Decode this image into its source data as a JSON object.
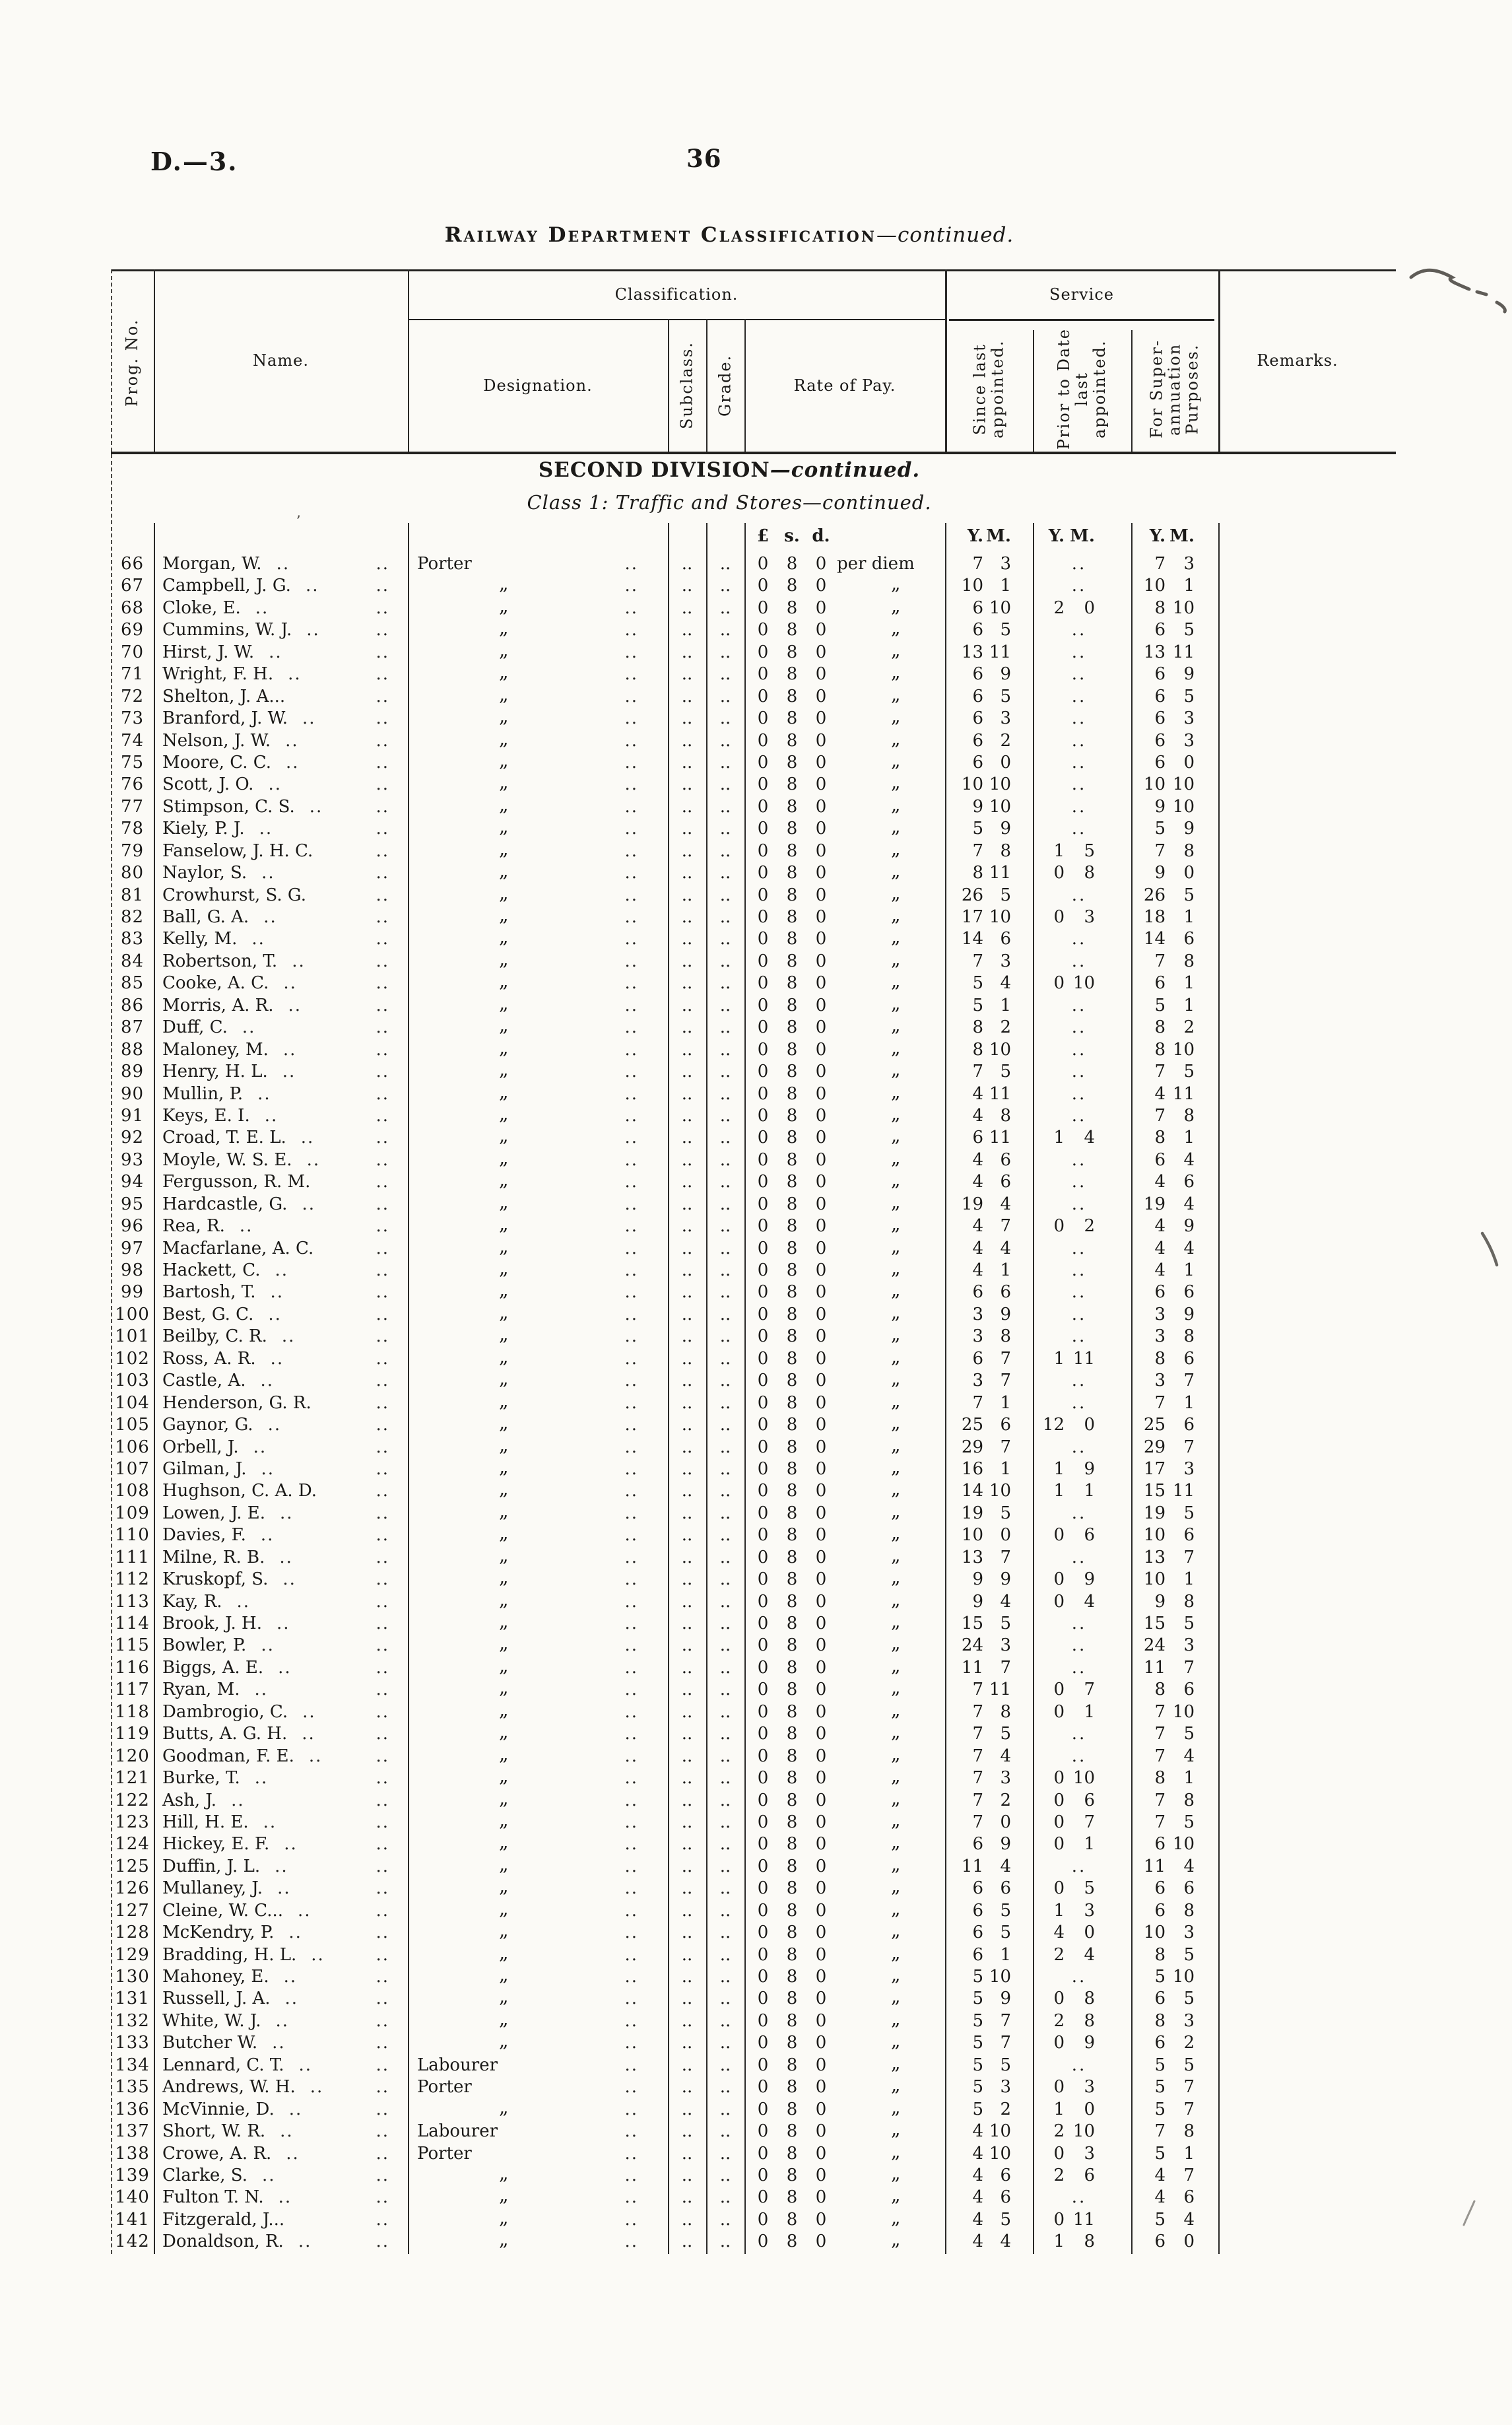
{
  "page": {
    "doc_ref": "D.—3.",
    "page_number": "36",
    "title": "Railway Department Classification",
    "title_cont": "—continued."
  },
  "table": {
    "headers": {
      "prog_no": "Prog. No.",
      "name": "Name.",
      "classification": "Classification.",
      "designation": "Designation.",
      "subclass": "Subclass.",
      "grade": "Grade.",
      "rate_of_pay": "Rate of Pay.",
      "service": "Service",
      "since_last": "Since last\nappointed.",
      "prior_to": "Prior to Date\nlast\nappointed.",
      "superannuation": "For Super-\nannuation\nPurposes.",
      "remarks": "Remarks."
    },
    "section": {
      "division": "SECOND DIVISION",
      "division_cont": "—continued.",
      "class_line": "Class 1: Traffic and Stores",
      "class_cont": "—continued."
    },
    "unit_headers": {
      "pound": "£",
      "shillings": "s.",
      "pence": "d.",
      "ym_y": "Y.",
      "ym_m": "M."
    },
    "leader_dots": "..",
    "ditto": "„",
    "rows": [
      {
        "no": "66",
        "name": "Morgan, W.",
        "desig": "Porter",
        "rate": "0 8 0",
        "per": "per diem",
        "since": "7 3",
        "prior": "..",
        "super": "7 3"
      },
      {
        "no": "67",
        "name": "Campbell, J. G.",
        "desig": "„",
        "rate": "0 8 0",
        "per": "„",
        "since": "10 1",
        "prior": "..",
        "super": "10 1"
      },
      {
        "no": "68",
        "name": "Cloke, E.",
        "desig": "„",
        "rate": "0 8 0",
        "per": "„",
        "since": "6 10",
        "prior": "2 0",
        "super": "8 10"
      },
      {
        "no": "69",
        "name": "Cummins, W. J.",
        "desig": "„",
        "rate": "0 8 0",
        "per": "„",
        "since": "6 5",
        "prior": "..",
        "super": "6 5"
      },
      {
        "no": "70",
        "name": "Hirst, J. W.",
        "desig": "„",
        "rate": "0 8 0",
        "per": "„",
        "since": "13 11",
        "prior": "..",
        "super": "13 11"
      },
      {
        "no": "71",
        "name": "Wright, F. H.",
        "desig": "„",
        "rate": "0 8 0",
        "per": "„",
        "since": "6 9",
        "prior": "..",
        "super": "6 9"
      },
      {
        "no": "72",
        "name": "Shelton, J. A...",
        "desig": "„",
        "rate": "0 8 0",
        "per": "„",
        "since": "6 5",
        "prior": "..",
        "super": "6 5"
      },
      {
        "no": "73",
        "name": "Branford, J. W.",
        "desig": "„",
        "rate": "0 8 0",
        "per": "„",
        "since": "6 3",
        "prior": "..",
        "super": "6 3"
      },
      {
        "no": "74",
        "name": "Nelson, J. W.",
        "desig": "„",
        "rate": "0 8 0",
        "per": "„",
        "since": "6 2",
        "prior": "..",
        "super": "6 3"
      },
      {
        "no": "75",
        "name": "Moore, C. C.",
        "desig": "„",
        "rate": "0 8 0",
        "per": "„",
        "since": "6 0",
        "prior": "..",
        "super": "6 0"
      },
      {
        "no": "76",
        "name": "Scott, J. O.",
        "desig": "„",
        "rate": "0 8 0",
        "per": "„",
        "since": "10 10",
        "prior": "..",
        "super": "10 10"
      },
      {
        "no": "77",
        "name": "Stimpson, C. S.",
        "desig": "„",
        "rate": "0 8 0",
        "per": "„",
        "since": "9 10",
        "prior": "..",
        "super": "9 10"
      },
      {
        "no": "78",
        "name": "Kiely, P. J.",
        "desig": "„",
        "rate": "0 8 0",
        "per": "„",
        "since": "5 9",
        "prior": "..",
        "super": "5 9"
      },
      {
        "no": "79",
        "name": "Fanselow, J. H. C.",
        "desig": "„",
        "rate": "0 8 0",
        "per": "„",
        "since": "7 8",
        "prior": "1 5",
        "super": "7 8"
      },
      {
        "no": "80",
        "name": "Naylor, S.",
        "desig": "„",
        "rate": "0 8 0",
        "per": "„",
        "since": "8 11",
        "prior": "0 8",
        "super": "9 0"
      },
      {
        "no": "81",
        "name": "Crowhurst, S. G.",
        "desig": "„",
        "rate": "0 8 0",
        "per": "„",
        "since": "26 5",
        "prior": "..",
        "super": "26 5"
      },
      {
        "no": "82",
        "name": "Ball, G. A.",
        "desig": "„",
        "rate": "0 8 0",
        "per": "„",
        "since": "17 10",
        "prior": "0 3",
        "super": "18 1"
      },
      {
        "no": "83",
        "name": "Kelly, M.",
        "desig": "„",
        "rate": "0 8 0",
        "per": "„",
        "since": "14 6",
        "prior": "..",
        "super": "14 6"
      },
      {
        "no": "84",
        "name": "Robertson, T.",
        "desig": "„",
        "rate": "0 8 0",
        "per": "„",
        "since": "7 3",
        "prior": "..",
        "super": "7 8"
      },
      {
        "no": "85",
        "name": "Cooke, A. C.",
        "desig": "„",
        "rate": "0 8 0",
        "per": "„",
        "since": "5 4",
        "prior": "0 10",
        "super": "6 1"
      },
      {
        "no": "86",
        "name": "Morris, A. R.",
        "desig": "„",
        "rate": "0 8 0",
        "per": "„",
        "since": "5 1",
        "prior": "..",
        "super": "5 1"
      },
      {
        "no": "87",
        "name": "Duff, C.",
        "desig": "„",
        "rate": "0 8 0",
        "per": "„",
        "since": "8 2",
        "prior": "..",
        "super": "8 2"
      },
      {
        "no": "88",
        "name": "Maloney, M.",
        "desig": "„",
        "rate": "0 8 0",
        "per": "„",
        "since": "8 10",
        "prior": "..",
        "super": "8 10"
      },
      {
        "no": "89",
        "name": "Henry, H. L.",
        "desig": "„",
        "rate": "0 8 0",
        "per": "„",
        "since": "7 5",
        "prior": "..",
        "super": "7 5"
      },
      {
        "no": "90",
        "name": "Mullin, P.",
        "desig": "„",
        "rate": "0 8 0",
        "per": "„",
        "since": "4 11",
        "prior": "..",
        "super": "4 11"
      },
      {
        "no": "91",
        "name": "Keys, E. I.",
        "desig": "„",
        "rate": "0 8 0",
        "per": "„",
        "since": "4 8",
        "prior": "..",
        "super": "7 8"
      },
      {
        "no": "92",
        "name": "Croad, T. E. L.",
        "desig": "„",
        "rate": "0 8 0",
        "per": "„",
        "since": "6 11",
        "prior": "1 4",
        "super": "8 1"
      },
      {
        "no": "93",
        "name": "Moyle, W. S. E.",
        "desig": "„",
        "rate": "0 8 0",
        "per": "„",
        "since": "4 6",
        "prior": "..",
        "super": "6 4"
      },
      {
        "no": "94",
        "name": "Fergusson, R. M.",
        "desig": "„",
        "rate": "0 8 0",
        "per": "„",
        "since": "4 6",
        "prior": "..",
        "super": "4 6"
      },
      {
        "no": "95",
        "name": "Hardcastle, G.",
        "desig": "„",
        "rate": "0 8 0",
        "per": "„",
        "since": "19 4",
        "prior": "..",
        "super": "19 4"
      },
      {
        "no": "96",
        "name": "Rea, R.",
        "desig": "„",
        "rate": "0 8 0",
        "per": "„",
        "since": "4 7",
        "prior": "0 2",
        "super": "4 9"
      },
      {
        "no": "97",
        "name": "Macfarlane, A. C.",
        "desig": "„",
        "rate": "0 8 0",
        "per": "„",
        "since": "4 4",
        "prior": "..",
        "super": "4 4"
      },
      {
        "no": "98",
        "name": "Hackett, C.",
        "desig": "„",
        "rate": "0 8 0",
        "per": "„",
        "since": "4 1",
        "prior": "..",
        "super": "4 1"
      },
      {
        "no": "99",
        "name": "Bartosh, T.",
        "desig": "„",
        "rate": "0 8 0",
        "per": "„",
        "since": "6 6",
        "prior": "..",
        "super": "6 6"
      },
      {
        "no": "100",
        "name": "Best, G. C.",
        "desig": "„",
        "rate": "0 8 0",
        "per": "„",
        "since": "3 9",
        "prior": "..",
        "super": "3 9"
      },
      {
        "no": "101",
        "name": "Beilby, C. R.",
        "desig": "„",
        "rate": "0 8 0",
        "per": "„",
        "since": "3 8",
        "prior": "..",
        "super": "3 8"
      },
      {
        "no": "102",
        "name": "Ross, A. R.",
        "desig": "„",
        "rate": "0 8 0",
        "per": "„",
        "since": "6 7",
        "prior": "1 11",
        "super": "8 6"
      },
      {
        "no": "103",
        "name": "Castle, A.",
        "desig": "„",
        "rate": "0 8 0",
        "per": "„",
        "since": "3 7",
        "prior": "..",
        "super": "3 7"
      },
      {
        "no": "104",
        "name": "Henderson, G. R.",
        "desig": "„",
        "rate": "0 8 0",
        "per": "„",
        "since": "7 1",
        "prior": "..",
        "super": "7 1"
      },
      {
        "no": "105",
        "name": "Gaynor, G.",
        "desig": "„",
        "rate": "0 8 0",
        "per": "„",
        "since": "25 6",
        "prior": "12 0",
        "super": "25 6"
      },
      {
        "no": "106",
        "name": "Orbell, J.",
        "desig": "„",
        "rate": "0 8 0",
        "per": "„",
        "since": "29 7",
        "prior": "..",
        "super": "29 7"
      },
      {
        "no": "107",
        "name": "Gilman, J.",
        "desig": "„",
        "rate": "0 8 0",
        "per": "„",
        "since": "16 1",
        "prior": "1 9",
        "super": "17 3"
      },
      {
        "no": "108",
        "name": "Hughson, C. A. D.",
        "desig": "„",
        "rate": "0 8 0",
        "per": "„",
        "since": "14 10",
        "prior": "1 1",
        "super": "15 11"
      },
      {
        "no": "109",
        "name": "Lowen, J. E.",
        "desig": "„",
        "rate": "0 8 0",
        "per": "„",
        "since": "19 5",
        "prior": "..",
        "super": "19 5"
      },
      {
        "no": "110",
        "name": "Davies, F.",
        "desig": "„",
        "rate": "0 8 0",
        "per": "„",
        "since": "10 0",
        "prior": "0 6",
        "super": "10 6"
      },
      {
        "no": "111",
        "name": "Milne, R. B.",
        "desig": "„",
        "rate": "0 8 0",
        "per": "„",
        "since": "13 7",
        "prior": "..",
        "super": "13 7"
      },
      {
        "no": "112",
        "name": "Kruskopf, S.",
        "desig": "„",
        "rate": "0 8 0",
        "per": "„",
        "since": "9 9",
        "prior": "0 9",
        "super": "10 1"
      },
      {
        "no": "113",
        "name": "Kay, R.",
        "desig": "„",
        "rate": "0 8 0",
        "per": "„",
        "since": "9 4",
        "prior": "0 4",
        "super": "9 8"
      },
      {
        "no": "114",
        "name": "Brook, J. H.",
        "desig": "„",
        "rate": "0 8 0",
        "per": "„",
        "since": "15 5",
        "prior": "..",
        "super": "15 5"
      },
      {
        "no": "115",
        "name": "Bowler, P.",
        "desig": "„",
        "rate": "0 8 0",
        "per": "„",
        "since": "24 3",
        "prior": "..",
        "super": "24 3"
      },
      {
        "no": "116",
        "name": "Biggs, A. E.",
        "desig": "„",
        "rate": "0 8 0",
        "per": "„",
        "since": "11 7",
        "prior": "..",
        "super": "11 7"
      },
      {
        "no": "117",
        "name": "Ryan, M.",
        "desig": "„",
        "rate": "0 8 0",
        "per": "„",
        "since": "7 11",
        "prior": "0 7",
        "super": "8 6"
      },
      {
        "no": "118",
        "name": "Dambrogio, C.",
        "desig": "„",
        "rate": "0 8 0",
        "per": "„",
        "since": "7 8",
        "prior": "0 1",
        "super": "7 10"
      },
      {
        "no": "119",
        "name": "Butts, A. G. H.",
        "desig": "„",
        "rate": "0 8 0",
        "per": "„",
        "since": "7 5",
        "prior": "..",
        "super": "7 5"
      },
      {
        "no": "120",
        "name": "Goodman, F. E.",
        "desig": "„",
        "rate": "0 8 0",
        "per": "„",
        "since": "7 4",
        "prior": "..",
        "super": "7 4"
      },
      {
        "no": "121",
        "name": "Burke, T.",
        "desig": "„",
        "rate": "0 8 0",
        "per": "„",
        "since": "7 3",
        "prior": "0 10",
        "super": "8 1"
      },
      {
        "no": "122",
        "name": "Ash, J.",
        "desig": "„",
        "rate": "0 8 0",
        "per": "„",
        "since": "7 2",
        "prior": "0 6",
        "super": "7 8"
      },
      {
        "no": "123",
        "name": "Hill, H. E.",
        "desig": "„",
        "rate": "0 8 0",
        "per": "„",
        "since": "7 0",
        "prior": "0 7",
        "super": "7 5"
      },
      {
        "no": "124",
        "name": "Hickey, E. F.",
        "desig": "„",
        "rate": "0 8 0",
        "per": "„",
        "since": "6 9",
        "prior": "0 1",
        "super": "6 10"
      },
      {
        "no": "125",
        "name": "Duffin, J. L.",
        "desig": "„",
        "rate": "0 8 0",
        "per": "„",
        "since": "11 4",
        "prior": "..",
        "super": "11 4"
      },
      {
        "no": "126",
        "name": "Mullaney, J.",
        "desig": "„",
        "rate": "0 8 0",
        "per": "„",
        "since": "6 6",
        "prior": "0 5",
        "super": "6 6"
      },
      {
        "no": "127",
        "name": "Cleine, W. C...",
        "desig": "„",
        "rate": "0 8 0",
        "per": "„",
        "since": "6 5",
        "prior": "1 3",
        "super": "6 8"
      },
      {
        "no": "128",
        "name": "McKendry, P.",
        "desig": "„",
        "rate": "0 8 0",
        "per": "„",
        "since": "6 5",
        "prior": "4 0",
        "super": "10 3"
      },
      {
        "no": "129",
        "name": "Bradding, H. L.",
        "desig": "„",
        "rate": "0 8 0",
        "per": "„",
        "since": "6 1",
        "prior": "2 4",
        "super": "8 5"
      },
      {
        "no": "130",
        "name": "Mahoney, E.",
        "desig": "„",
        "rate": "0 8 0",
        "per": "„",
        "since": "5 10",
        "prior": "..",
        "super": "5 10"
      },
      {
        "no": "131",
        "name": "Russell, J. A.",
        "desig": "„",
        "rate": "0 8 0",
        "per": "„",
        "since": "5 9",
        "prior": "0 8",
        "super": "6 5"
      },
      {
        "no": "132",
        "name": "White, W. J.",
        "desig": "„",
        "rate": "0 8 0",
        "per": "„",
        "since": "5 7",
        "prior": "2 8",
        "super": "8 3"
      },
      {
        "no": "133",
        "name": "Butcher W.",
        "desig": "„",
        "rate": "0 8 0",
        "per": "„",
        "since": "5 7",
        "prior": "0 9",
        "super": "6 2"
      },
      {
        "no": "134",
        "name": "Lennard, C. T.",
        "desig": "Labourer",
        "rate": "0 8 0",
        "per": "„",
        "since": "5 5",
        "prior": "..",
        "super": "5 5"
      },
      {
        "no": "135",
        "name": "Andrews, W. H.",
        "desig": "Porter",
        "rate": "0 8 0",
        "per": "„",
        "since": "5 3",
        "prior": "0 3",
        "super": "5 7"
      },
      {
        "no": "136",
        "name": "McVinnie, D.",
        "desig": "„",
        "rate": "0 8 0",
        "per": "„",
        "since": "5 2",
        "prior": "1 0",
        "super": "5 7"
      },
      {
        "no": "137",
        "name": "Short, W. R.",
        "desig": "Labourer",
        "rate": "0 8 0",
        "per": "„",
        "since": "4 10",
        "prior": "2 10",
        "super": "7 8"
      },
      {
        "no": "138",
        "name": "Crowe, A. R.",
        "desig": "Porter",
        "rate": "0 8 0",
        "per": "„",
        "since": "4 10",
        "prior": "0 3",
        "super": "5 1"
      },
      {
        "no": "139",
        "name": "Clarke, S.",
        "desig": "„",
        "rate": "0 8 0",
        "per": "„",
        "since": "4 6",
        "prior": "2 6",
        "super": "4 7"
      },
      {
        "no": "140",
        "name": "Fulton T. N.",
        "desig": "„",
        "rate": "0 8 0",
        "per": "„",
        "since": "4 6",
        "prior": "..",
        "super": "4 6"
      },
      {
        "no": "141",
        "name": "Fitzgerald, J...",
        "desig": "„",
        "rate": "0 8 0",
        "per": "„",
        "since": "4 5",
        "prior": "0 11",
        "super": "5 4"
      },
      {
        "no": "142",
        "name": "Donaldson, R.",
        "desig": "„",
        "rate": "0 8 0",
        "per": "„",
        "since": "4 4",
        "prior": "1 8",
        "super": "6 0"
      }
    ]
  }
}
